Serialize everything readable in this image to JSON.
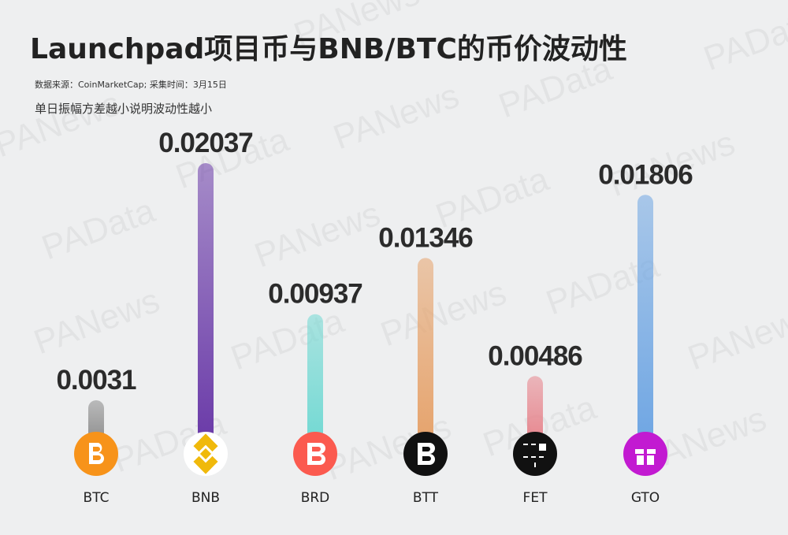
{
  "chart_data": {
    "type": "bar",
    "title": "Launchpad项目币与BNB/BTC的币价波动性",
    "source": "数据来源：CoinMarketCap;   采集时间：3月15日",
    "subtitle": "单日振幅方差越小说明波动性越小",
    "watermarks": [
      "PANews",
      "PAData"
    ],
    "categories": [
      "BTC",
      "BNB",
      "BRD",
      "BTT",
      "FET",
      "GTO"
    ],
    "values": [
      0.0031,
      0.02037,
      0.00937,
      0.01346,
      0.00486,
      0.01806
    ],
    "colors": [
      "#8e8e8e",
      "#6a3aa8",
      "#72d9d3",
      "#e6a36c",
      "#e7868e",
      "#6fa6e3"
    ]
  }
}
